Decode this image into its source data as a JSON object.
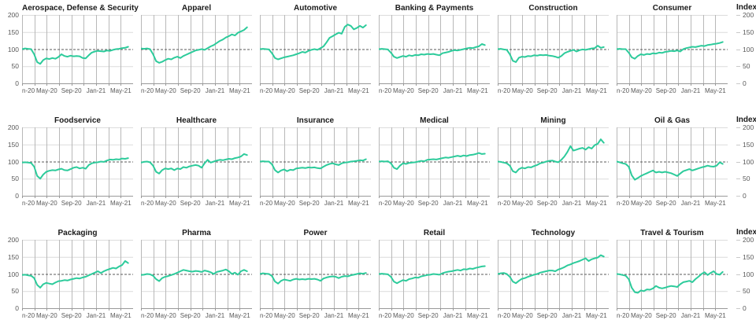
{
  "page": {
    "background": "#ffffff"
  },
  "chart_data": {
    "type": "line",
    "title": "",
    "layout_hint": {
      "rows": 3,
      "cols": 6,
      "grid": true,
      "legend": "none",
      "reference_line_style": "dashed"
    },
    "x": {
      "tick_labels": [
        "n-20",
        "May-20",
        "Sep-20",
        "Jan-21",
        "May-21"
      ],
      "tick_months": [
        0,
        4,
        8,
        12,
        16
      ],
      "gridline_every_months": 2,
      "domain_months": [
        0,
        18
      ],
      "data_end_month": 17.2
    },
    "y": {
      "label": "Index",
      "tick_labels": [
        "200",
        "150",
        "100",
        "50",
        "0"
      ],
      "ticks": [
        200,
        150,
        100,
        50,
        0
      ],
      "ylim": [
        0,
        200
      ],
      "reference_line": 100
    },
    "line_color": "#2DCB9B",
    "colors": {
      "grid_v": "#b8b8b8",
      "grid_h": "#dcdcdc",
      "axis": "#999999",
      "ref_line": "#595959",
      "tick_text": "#595959",
      "title_text": "#1a1a1a"
    },
    "series": [
      {
        "name": "Aerospace, Defense & Security",
        "values": [
          100,
          102,
          101,
          100,
          85,
          62,
          57,
          68,
          73,
          71,
          74,
          72,
          77,
          85,
          80,
          78,
          81,
          79,
          80,
          79,
          74,
          73,
          82,
          90,
          93,
          95,
          94,
          93,
          96,
          95,
          98,
          100,
          101,
          103,
          104,
          107
        ]
      },
      {
        "name": "Apparel",
        "values": [
          102,
          101,
          102,
          100,
          85,
          65,
          60,
          63,
          68,
          72,
          70,
          75,
          78,
          74,
          80,
          84,
          88,
          92,
          96,
          98,
          100,
          98,
          103,
          108,
          112,
          118,
          124,
          128,
          134,
          138,
          143,
          140,
          148,
          152,
          156,
          164
        ]
      },
      {
        "name": "Automotive",
        "values": [
          100,
          101,
          100,
          99,
          88,
          74,
          70,
          73,
          76,
          78,
          80,
          82,
          85,
          88,
          92,
          90,
          95,
          98,
          100,
          98,
          103,
          108,
          120,
          133,
          138,
          143,
          148,
          145,
          165,
          172,
          168,
          158,
          162,
          168,
          163,
          170
        ]
      },
      {
        "name": "Banking & Payments",
        "values": [
          100,
          101,
          100,
          99,
          90,
          78,
          74,
          77,
          80,
          78,
          82,
          80,
          83,
          82,
          85,
          84,
          86,
          85,
          86,
          84,
          82,
          88,
          90,
          92,
          95,
          97,
          96,
          98,
          100,
          102,
          104,
          103,
          106,
          108,
          115,
          112
        ]
      },
      {
        "name": "Construction",
        "values": [
          100,
          101,
          99,
          98,
          85,
          66,
          62,
          75,
          78,
          77,
          80,
          79,
          82,
          81,
          83,
          82,
          83,
          81,
          80,
          78,
          75,
          80,
          88,
          92,
          95,
          98,
          93,
          97,
          99,
          98,
          100,
          102,
          103,
          110,
          104,
          106
        ]
      },
      {
        "name": "Consumer",
        "values": [
          100,
          101,
          100,
          100,
          90,
          76,
          72,
          80,
          85,
          83,
          86,
          85,
          88,
          87,
          90,
          89,
          92,
          93,
          95,
          94,
          96,
          93,
          100,
          103,
          105,
          107,
          106,
          108,
          110,
          109,
          112,
          113,
          115,
          116,
          118,
          121
        ]
      },
      {
        "name": "Foodservice",
        "values": [
          97,
          98,
          97,
          96,
          85,
          58,
          50,
          62,
          70,
          73,
          75,
          74,
          77,
          79,
          75,
          74,
          78,
          82,
          84,
          80,
          82,
          79,
          90,
          95,
          97,
          98,
          100,
          99,
          103,
          106,
          105,
          107,
          106,
          109,
          108,
          110
        ]
      },
      {
        "name": "Healthcare",
        "values": [
          97,
          99,
          100,
          98,
          88,
          70,
          65,
          75,
          80,
          78,
          80,
          75,
          80,
          78,
          84,
          82,
          86,
          88,
          90,
          88,
          82,
          95,
          105,
          97,
          100,
          103,
          105,
          104,
          106,
          108,
          107,
          110,
          112,
          115,
          122,
          119
        ]
      },
      {
        "name": "Insurance",
        "values": [
          100,
          101,
          100,
          100,
          92,
          75,
          68,
          74,
          77,
          72,
          76,
          75,
          80,
          81,
          82,
          81,
          83,
          82,
          83,
          81,
          80,
          85,
          90,
          93,
          95,
          92,
          90,
          95,
          97,
          98,
          100,
          101,
          102,
          104,
          103,
          107
        ]
      },
      {
        "name": "Medical",
        "values": [
          100,
          101,
          100,
          101,
          95,
          82,
          78,
          88,
          95,
          93,
          96,
          97,
          98,
          100,
          102,
          101,
          105,
          106,
          107,
          106,
          108,
          110,
          112,
          111,
          113,
          115,
          117,
          115,
          118,
          116,
          119,
          120,
          122,
          125,
          122,
          123
        ]
      },
      {
        "name": "Mining",
        "values": [
          100,
          99,
          97,
          95,
          88,
          72,
          68,
          78,
          82,
          80,
          84,
          83,
          87,
          90,
          95,
          97,
          100,
          102,
          103,
          100,
          98,
          105,
          115,
          128,
          145,
          132,
          135,
          138,
          140,
          135,
          142,
          138,
          148,
          152,
          165,
          155
        ]
      },
      {
        "name": "Oil & Gas",
        "values": [
          100,
          98,
          95,
          93,
          85,
          60,
          47,
          52,
          58,
          62,
          66,
          70,
          74,
          68,
          70,
          68,
          70,
          68,
          66,
          62,
          58,
          65,
          72,
          75,
          78,
          74,
          77,
          80,
          83,
          85,
          88,
          86,
          85,
          88,
          98,
          93
        ]
      },
      {
        "name": "Packaging",
        "values": [
          97,
          98,
          96,
          95,
          88,
          68,
          60,
          70,
          74,
          72,
          70,
          75,
          79,
          80,
          82,
          81,
          84,
          86,
          88,
          87,
          90,
          92,
          96,
          100,
          104,
          108,
          103,
          108,
          112,
          115,
          118,
          116,
          122,
          126,
          138,
          132
        ]
      },
      {
        "name": "Pharma",
        "values": [
          97,
          98,
          100,
          99,
          95,
          85,
          79,
          88,
          92,
          94,
          97,
          100,
          104,
          108,
          112,
          110,
          108,
          107,
          109,
          108,
          106,
          110,
          108,
          105,
          100,
          106,
          108,
          110,
          113,
          108,
          100,
          104,
          98,
          108,
          112,
          108
        ]
      },
      {
        "name": "Power",
        "values": [
          100,
          102,
          101,
          100,
          94,
          78,
          72,
          80,
          84,
          82,
          80,
          84,
          86,
          84,
          85,
          84,
          86,
          85,
          86,
          84,
          80,
          87,
          90,
          92,
          93,
          92,
          88,
          92,
          94,
          93,
          96,
          98,
          100,
          102,
          101,
          103
        ]
      },
      {
        "name": "Retail",
        "values": [
          100,
          101,
          100,
          99,
          92,
          78,
          73,
          78,
          82,
          80,
          85,
          87,
          90,
          89,
          93,
          95,
          97,
          98,
          100,
          99,
          98,
          102,
          105,
          107,
          108,
          110,
          112,
          110,
          114,
          113,
          116,
          115,
          118,
          120,
          122,
          123
        ]
      },
      {
        "name": "Technology",
        "values": [
          100,
          102,
          103,
          100,
          92,
          78,
          73,
          80,
          86,
          88,
          92,
          95,
          98,
          100,
          104,
          106,
          108,
          110,
          110,
          108,
          113,
          116,
          120,
          125,
          128,
          132,
          135,
          138,
          142,
          146,
          138,
          143,
          146,
          148,
          155,
          151
        ]
      },
      {
        "name": "Travel & Tourism",
        "values": [
          100,
          99,
          97,
          95,
          85,
          60,
          47,
          45,
          52,
          50,
          55,
          54,
          58,
          65,
          60,
          58,
          60,
          63,
          65,
          64,
          62,
          70,
          76,
          78,
          80,
          76,
          85,
          92,
          100,
          105,
          97,
          103,
          108,
          100,
          98,
          106
        ]
      }
    ]
  }
}
